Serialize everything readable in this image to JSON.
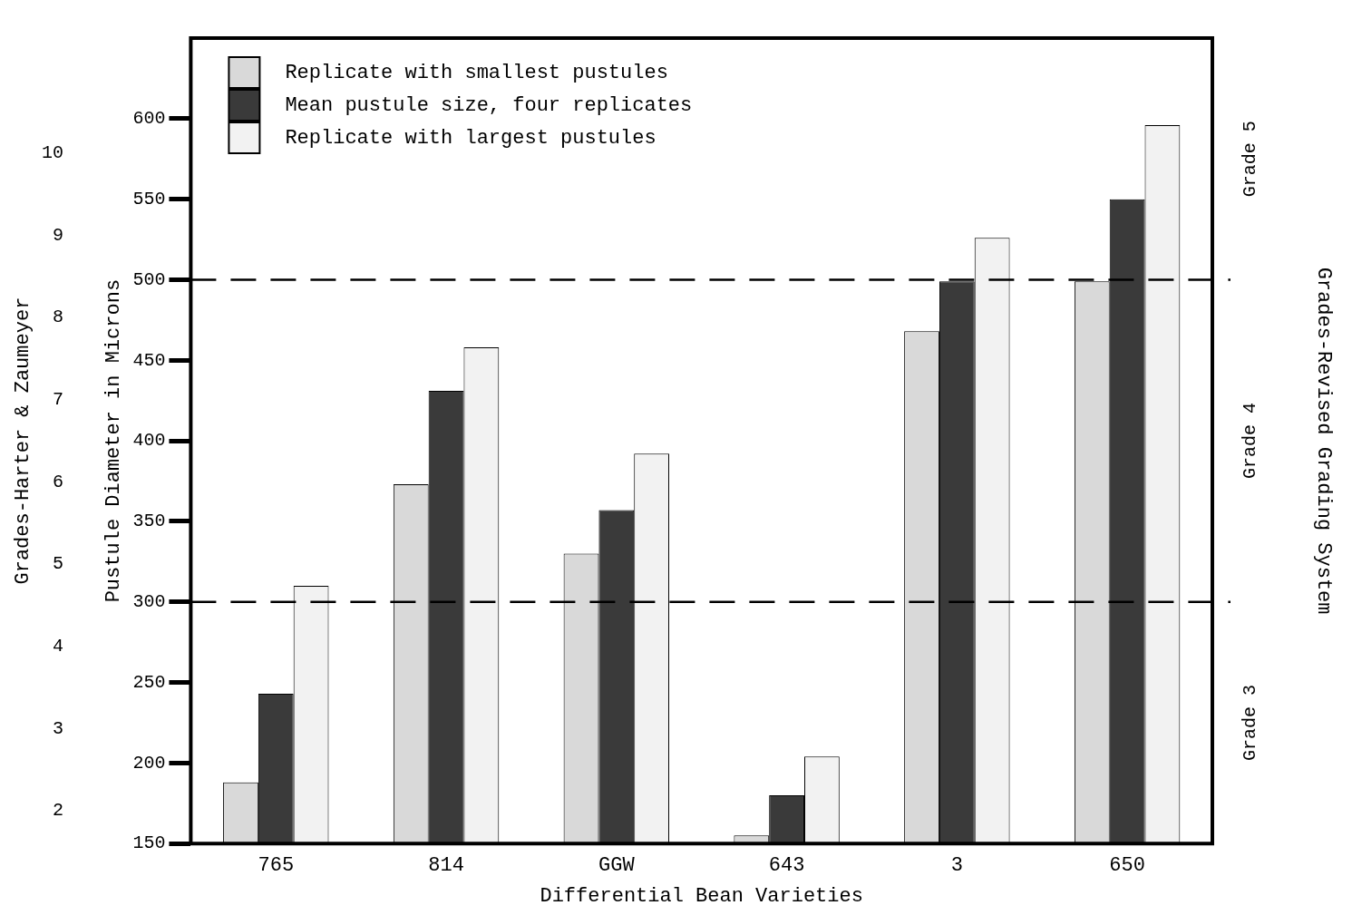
{
  "chart_data": {
    "type": "bar",
    "xlabel": "Differential Bean Varieties",
    "ylabel": "Pustule Diameter in Microns",
    "y2label": "Grades-Revised Grading System",
    "y3label": "Grades-Harter & Zaumeyer",
    "categories": [
      "765",
      "814",
      "GGW",
      "643",
      "3",
      "650"
    ],
    "series": [
      {
        "name": "Replicate with smallest pustules",
        "color": "#d9d9d9",
        "values": [
          188,
          373,
          330,
          155,
          468,
          499
        ]
      },
      {
        "name": "Mean pustule size, four replicates",
        "color": "#3a3a3a",
        "values": [
          243,
          431,
          357,
          180,
          499,
          550
        ]
      },
      {
        "name": "Replicate with largest pustules",
        "color": "#f2f2f2",
        "values": [
          310,
          458,
          392,
          204,
          526,
          596
        ]
      }
    ],
    "ylim": [
      150,
      650
    ],
    "yticks": [
      150,
      200,
      250,
      300,
      350,
      400,
      450,
      500,
      550,
      600
    ],
    "annotations": [
      "Grade 3",
      "Grade 4",
      "Grade 5"
    ],
    "y3lim": [
      1.6,
      11.4
    ],
    "y3ticks": [
      2,
      3,
      4,
      5,
      6,
      7,
      8,
      9,
      10
    ],
    "ref_lines": [
      {
        "axis": "y",
        "value": 300,
        "line_style": "dashed"
      },
      {
        "axis": "y",
        "value": 500,
        "line_style": "dashed"
      }
    ],
    "legend": "top left",
    "grid": false
  }
}
